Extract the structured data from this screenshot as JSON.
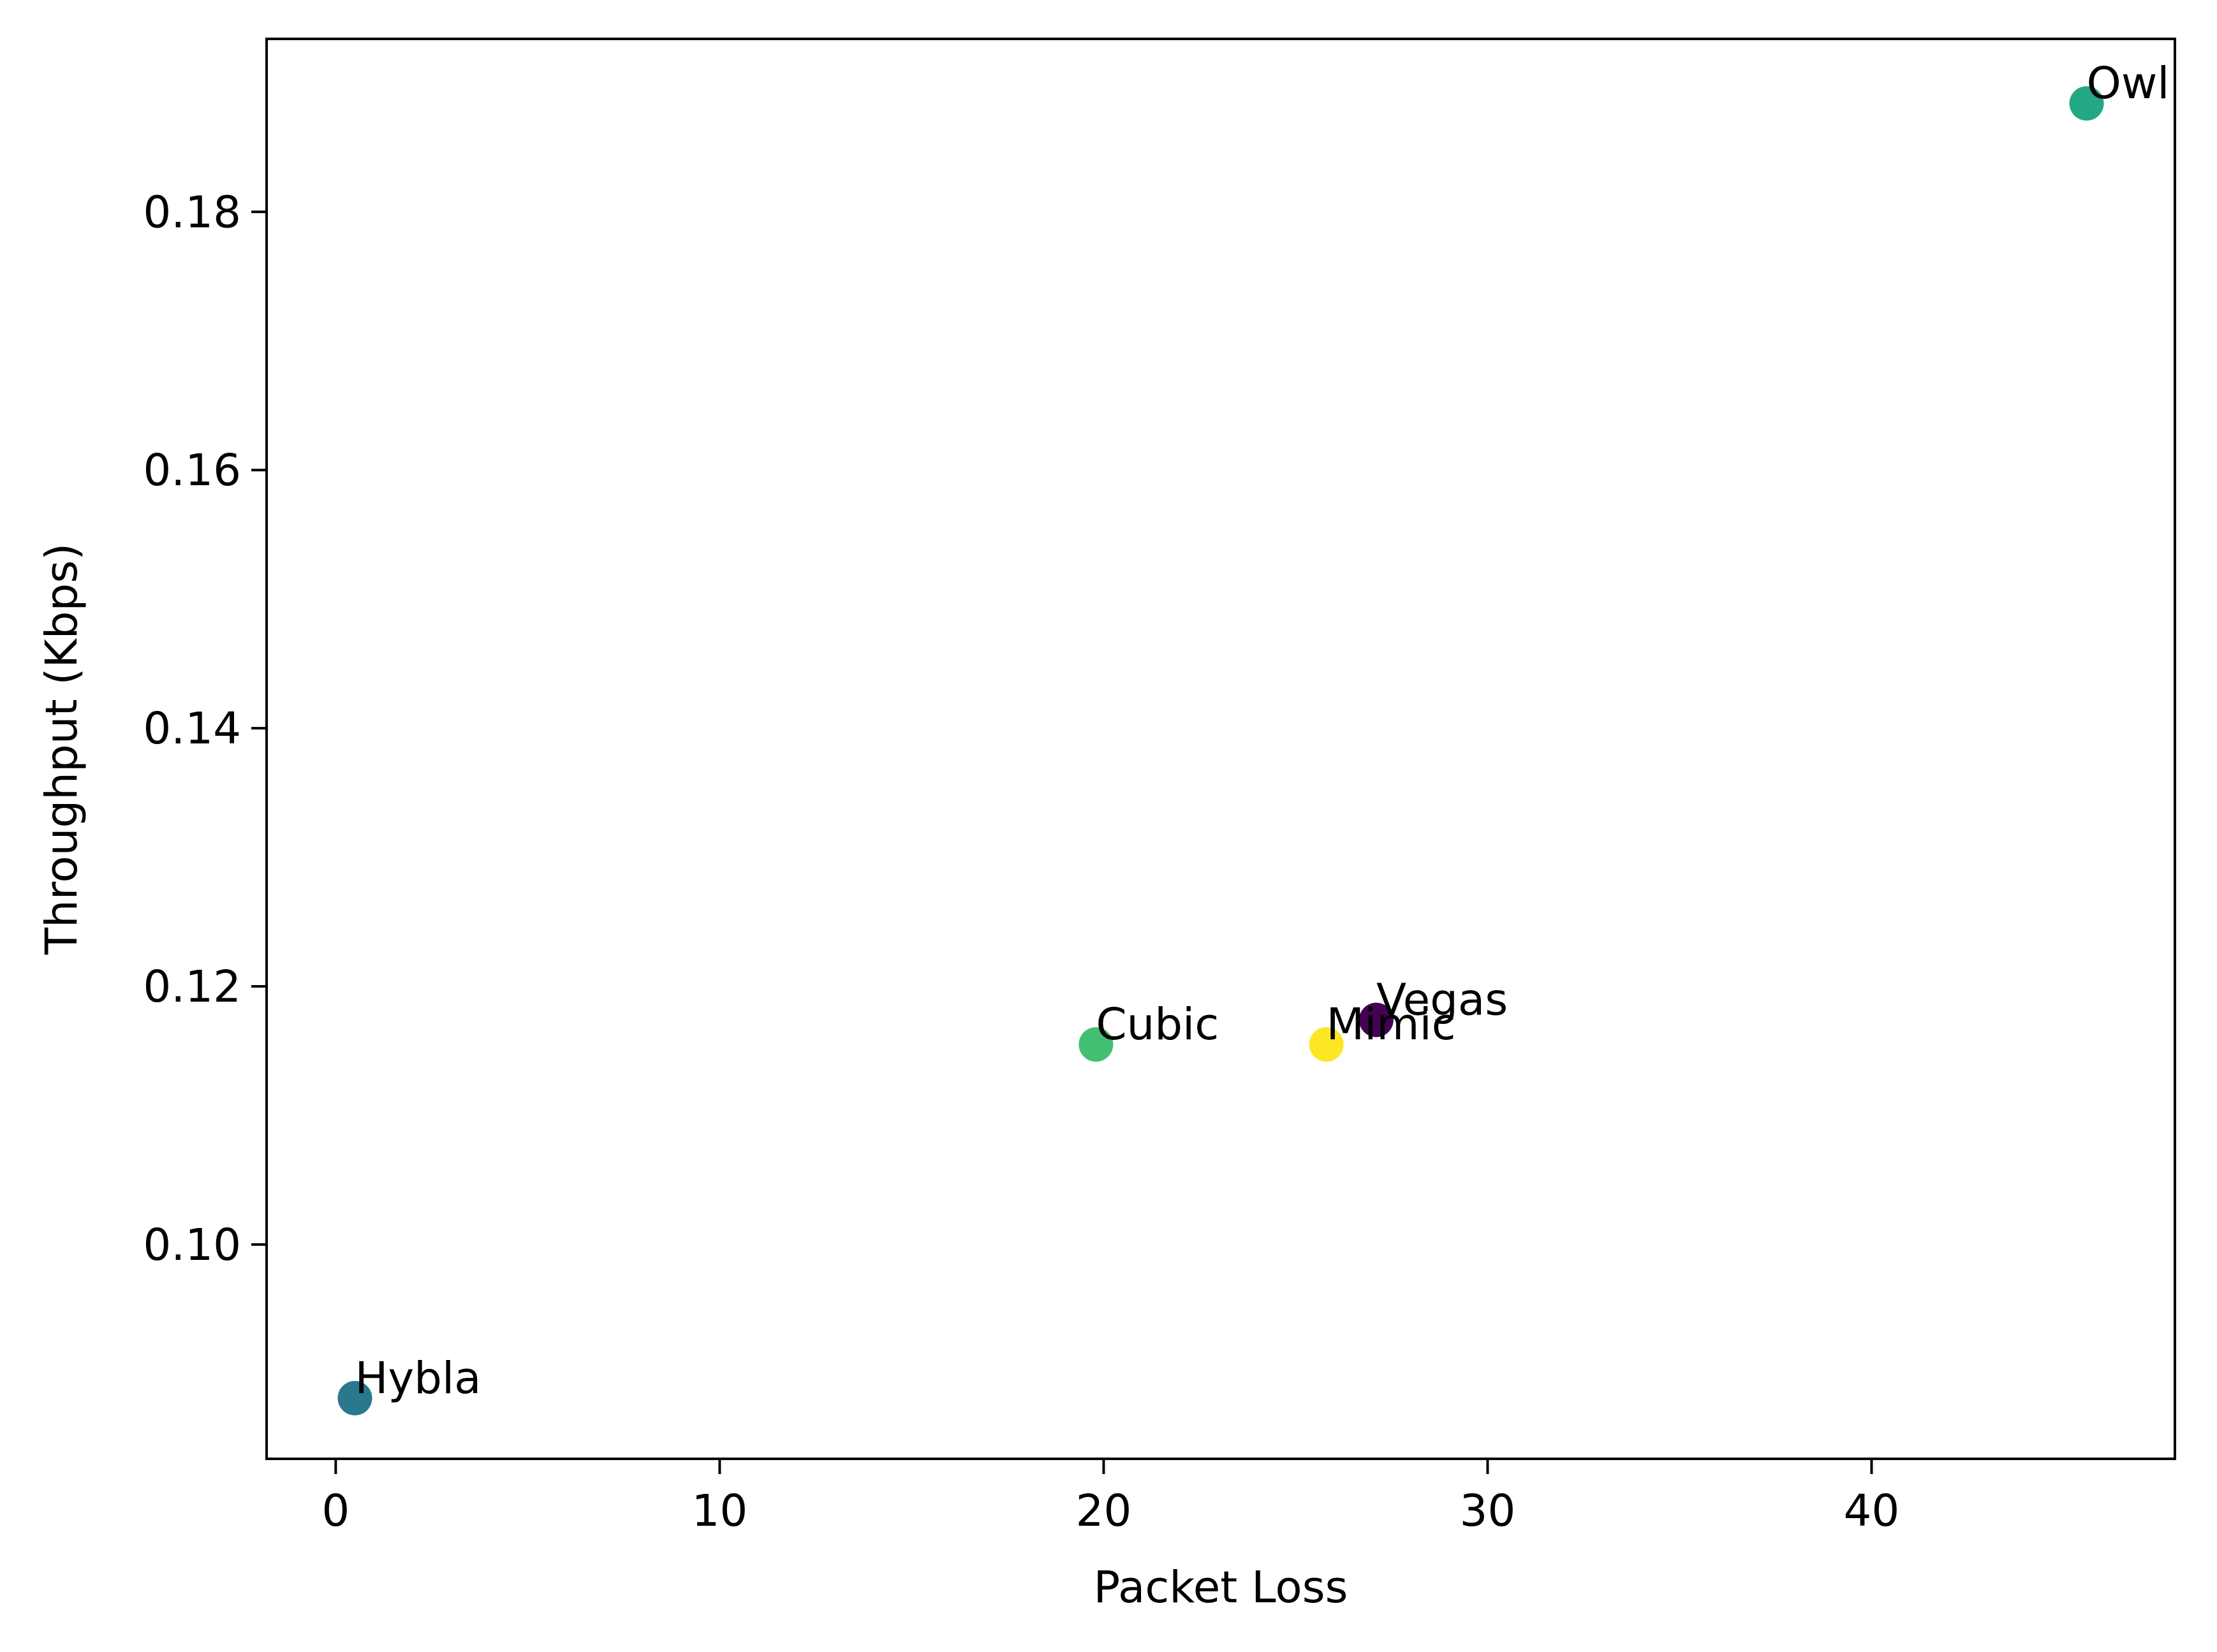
{
  "chart_data": {
    "type": "scatter",
    "title": "",
    "xlabel": "Packet Loss",
    "ylabel": "Throughput (Kbps)",
    "xlim": [
      -1.8,
      47.9
    ],
    "ylim": [
      0.0834,
      0.1934
    ],
    "xticks": [
      0,
      10,
      20,
      30,
      40
    ],
    "xtick_labels": [
      "0",
      "10",
      "20",
      "30",
      "40"
    ],
    "yticks": [
      0.1,
      0.12,
      0.14,
      0.16,
      0.18
    ],
    "ytick_labels": [
      "0.10",
      "0.12",
      "0.14",
      "0.16",
      "0.18"
    ],
    "grid": false,
    "points": [
      {
        "label": "Vegas",
        "x": 27.1,
        "y": 0.1174,
        "color": "#440154"
      },
      {
        "label": "Hybla",
        "x": 0.5,
        "y": 0.0881,
        "color": "#2a788e"
      },
      {
        "label": "Owl",
        "x": 45.6,
        "y": 0.1884,
        "color": "#22a884"
      },
      {
        "label": "Cubic",
        "x": 19.8,
        "y": 0.1155,
        "color": "#43bf71"
      },
      {
        "label": "Mimic",
        "x": 25.8,
        "y": 0.1155,
        "color": "#fde725"
      }
    ]
  }
}
